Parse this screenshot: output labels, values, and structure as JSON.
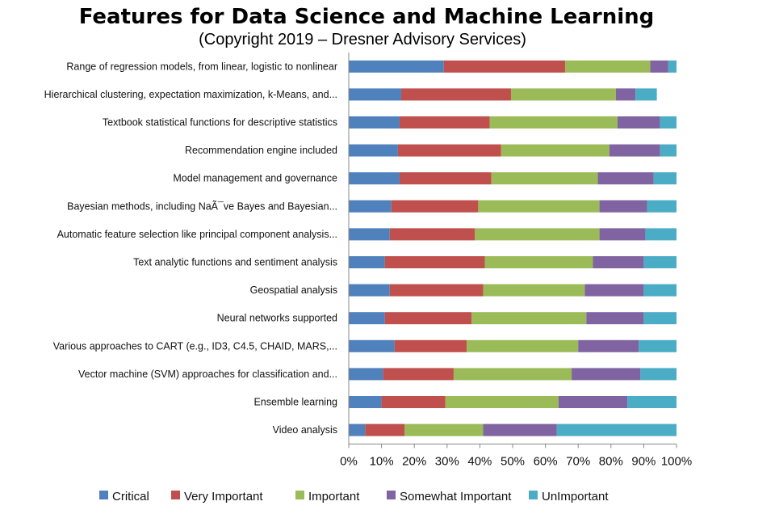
{
  "chart_data": {
    "type": "bar",
    "orientation": "horizontal",
    "stacking": "percent",
    "title": "Features for Data Science and Machine Learning",
    "subtitle": "(Copyright 2019 – Dresner Advisory Services)",
    "categories": [
      "Range of regression models, from linear, logistic to nonlinear",
      "Hierarchical clustering, expectation maximization, k-Means, and...",
      "Textbook statistical functions for descriptive statistics",
      "Recommendation engine included",
      "Model management and governance",
      "Bayesian methods, including NaÃ¯ve Bayes and Bayesian...",
      "Automatic feature selection like principal component analysis...",
      "Text analytic functions and sentiment analysis",
      "Geospatial analysis",
      "Neural networks supported",
      "Various approaches to CART (e.g., ID3, C4.5, CHAID, MARS,...",
      "Vector machine (SVM) approaches for classification and...",
      "Ensemble learning",
      "Video analysis"
    ],
    "series": [
      {
        "name": "Critical",
        "color": "#4f81bd",
        "values": [
          29,
          16,
          15.5,
          15,
          15.5,
          13,
          12.5,
          11,
          12.5,
          11,
          14,
          10.5,
          10,
          5
        ]
      },
      {
        "name": "Very Important",
        "color": "#c0504d",
        "values": [
          37,
          33.5,
          27.5,
          31.5,
          28,
          26.5,
          26,
          30.5,
          28.5,
          26.5,
          22,
          21.5,
          19.5,
          12
        ]
      },
      {
        "name": "Important",
        "color": "#9bbb59",
        "values": [
          26,
          32,
          39,
          33,
          32.5,
          37,
          38,
          33,
          31,
          35,
          34,
          36,
          34.5,
          24
        ]
      },
      {
        "name": "Somewhat Important",
        "color": "#8064a2",
        "values": [
          5.5,
          6,
          13,
          15.5,
          17,
          14.5,
          14,
          15.5,
          18,
          17.5,
          18.5,
          21,
          21,
          22.5
        ]
      },
      {
        "name": "UnImportant",
        "color": "#4bacc6",
        "values": [
          2.5,
          6.5,
          5,
          5,
          7,
          9,
          9.5,
          10,
          10,
          10,
          11.5,
          11,
          15,
          36.5
        ]
      }
    ],
    "xlim": [
      0,
      100
    ],
    "x_ticks": [
      "0%",
      "10%",
      "20%",
      "30%",
      "40%",
      "50%",
      "60%",
      "70%",
      "80%",
      "90%",
      "100%"
    ],
    "grid": false,
    "legend_position": "bottom"
  }
}
